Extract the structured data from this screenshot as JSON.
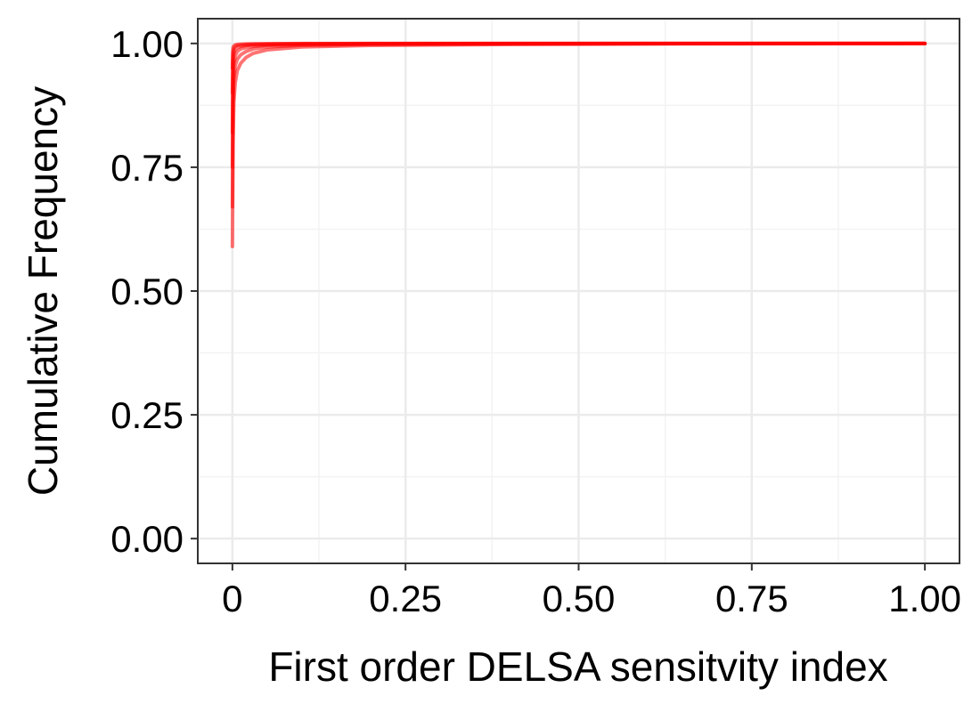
{
  "chart_data": {
    "type": "line",
    "title": "",
    "xlabel": "First order DELSA sensitvity index",
    "ylabel": "Cumulative Frequency",
    "xlim": [
      -0.05,
      1.05
    ],
    "ylim": [
      -0.05,
      1.05
    ],
    "x_ticks": [
      0,
      0.25,
      0.5,
      0.75,
      1.0
    ],
    "x_tick_labels": [
      "0",
      "0.25",
      "0.50",
      "0.75",
      "1.00"
    ],
    "y_ticks": [
      0,
      0.25,
      0.5,
      0.75,
      1.0
    ],
    "y_tick_labels": [
      "0.00",
      "0.25",
      "0.50",
      "0.75",
      "1.00"
    ],
    "grid": true,
    "legend": "none",
    "colors": {
      "series": "#ff0000",
      "panel_border": "#333333",
      "grid_major": "#ebebeb",
      "grid_minor": "#f3f3f3"
    },
    "series": [
      {
        "x": [
          0,
          0.0005,
          0.001,
          0.002,
          0.004,
          0.007,
          0.012,
          0.02,
          0.03,
          0.05,
          0.1,
          0.2,
          0.4,
          0.6,
          0.8,
          1.0
        ],
        "y": [
          0.59,
          0.7,
          0.8,
          0.88,
          0.92,
          0.945,
          0.96,
          0.972,
          0.98,
          0.987,
          0.993,
          0.996,
          0.998,
          0.999,
          0.9995,
          1.0
        ]
      },
      {
        "x": [
          0,
          0.0005,
          0.001,
          0.002,
          0.004,
          0.007,
          0.012,
          0.02,
          0.03,
          0.05,
          0.1,
          0.2,
          0.4,
          0.6,
          0.8,
          1.0
        ],
        "y": [
          0.67,
          0.8,
          0.88,
          0.93,
          0.955,
          0.968,
          0.977,
          0.984,
          0.989,
          0.993,
          0.996,
          0.998,
          0.999,
          0.9995,
          0.9998,
          1.0
        ]
      },
      {
        "x": [
          0,
          0.0005,
          0.001,
          0.002,
          0.004,
          0.007,
          0.012,
          0.02,
          0.03,
          0.05,
          0.1,
          0.2,
          0.4,
          0.6,
          0.8,
          1.0
        ],
        "y": [
          0.75,
          0.88,
          0.93,
          0.96,
          0.975,
          0.984,
          0.989,
          0.992,
          0.994,
          0.996,
          0.998,
          0.999,
          0.9995,
          0.9998,
          0.9999,
          1.0
        ]
      },
      {
        "x": [
          0,
          0.0005,
          0.001,
          0.002,
          0.004,
          0.007,
          0.012,
          0.02,
          0.03,
          0.05,
          0.1,
          0.2,
          0.4,
          0.6,
          0.8,
          1.0
        ],
        "y": [
          0.82,
          0.93,
          0.965,
          0.98,
          0.988,
          0.992,
          0.994,
          0.996,
          0.997,
          0.998,
          0.999,
          0.9995,
          0.9998,
          0.9999,
          1.0,
          1.0
        ]
      },
      {
        "x": [
          0,
          0.0005,
          0.001,
          0.002,
          0.004,
          0.007,
          0.012,
          0.02,
          0.03,
          0.05,
          0.1,
          0.2,
          0.4,
          0.6,
          0.8,
          1.0
        ],
        "y": [
          0.9,
          0.965,
          0.982,
          0.99,
          0.994,
          0.996,
          0.997,
          0.998,
          0.9985,
          0.999,
          0.9995,
          0.9998,
          0.9999,
          1.0,
          1.0,
          1.0
        ]
      },
      {
        "x": [
          0,
          0.0005,
          0.001,
          0.002,
          0.004,
          0.007,
          0.012,
          0.02,
          0.03,
          0.05,
          0.1,
          0.2,
          0.4,
          0.6,
          0.8,
          1.0
        ],
        "y": [
          0.95,
          0.985,
          0.992,
          0.995,
          0.997,
          0.998,
          0.9985,
          0.999,
          0.9993,
          0.9995,
          0.9998,
          0.9999,
          1.0,
          1.0,
          1.0,
          1.0
        ]
      }
    ]
  }
}
